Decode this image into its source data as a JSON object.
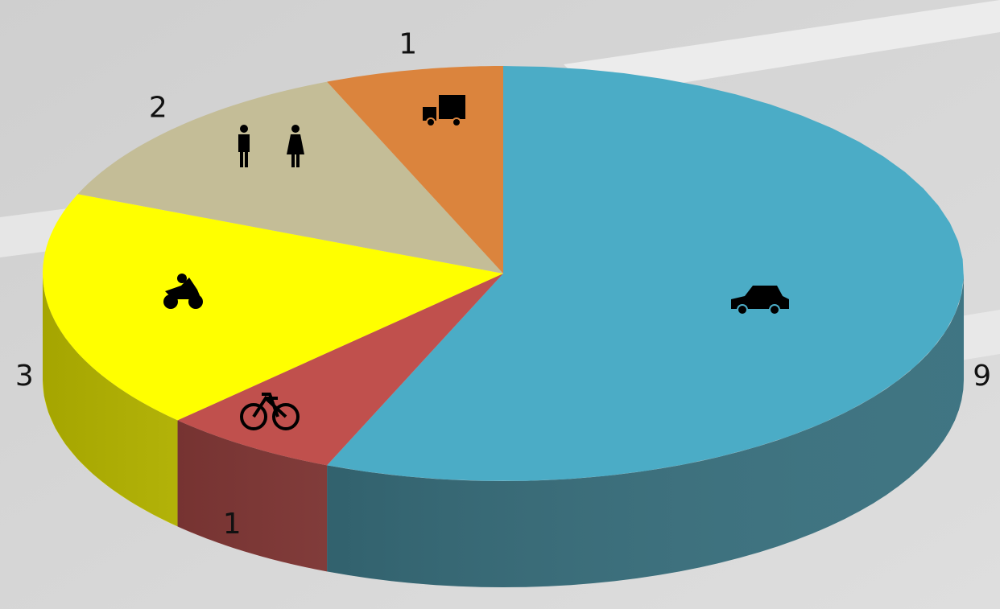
{
  "chart_data": {
    "type": "pie",
    "categories": [
      null,
      null,
      null,
      null,
      null
    ],
    "values": [
      9,
      1,
      3,
      2,
      1
    ],
    "colors": [
      "#4bacc6",
      "#c0504d",
      "#ffff00",
      "#c4bd97",
      "#db843d"
    ],
    "side_colors": [
      "#2a6675",
      "#8e3735",
      "#dcdc00",
      "#9a9474",
      "#a8622c"
    ]
  }
}
